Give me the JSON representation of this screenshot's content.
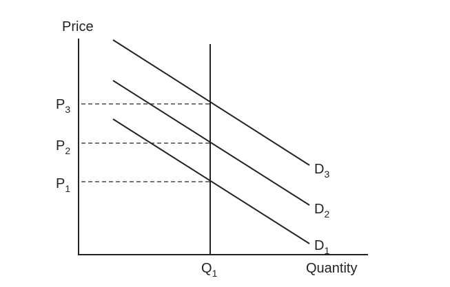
{
  "axes": {
    "y_label": "Price",
    "x_label": "Quantity"
  },
  "prices": [
    {
      "base": "P",
      "sub": "1"
    },
    {
      "base": "P",
      "sub": "2"
    },
    {
      "base": "P",
      "sub": "3"
    }
  ],
  "quantity": {
    "base": "Q",
    "sub": "1"
  },
  "demand_curves": [
    {
      "base": "D",
      "sub": "1"
    },
    {
      "base": "D",
      "sub": "2"
    },
    {
      "base": "D",
      "sub": "3"
    }
  ],
  "colors": {
    "line": "#222222"
  }
}
